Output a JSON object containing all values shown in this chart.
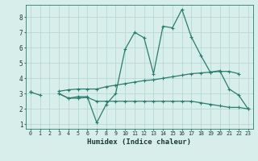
{
  "xlabel": "Humidex (Indice chaleur)",
  "x_values": [
    0,
    1,
    2,
    3,
    4,
    5,
    6,
    7,
    8,
    9,
    10,
    11,
    12,
    13,
    14,
    15,
    16,
    17,
    18,
    19,
    20,
    21,
    22,
    23
  ],
  "line1_y": [
    3.1,
    2.9,
    null,
    3.0,
    2.7,
    2.8,
    2.8,
    1.1,
    2.3,
    3.0,
    5.9,
    7.0,
    6.65,
    4.3,
    7.4,
    7.3,
    8.5,
    6.7,
    5.5,
    4.4,
    4.5,
    3.3,
    2.9,
    2.0
  ],
  "line2_y": [
    3.1,
    null,
    null,
    3.15,
    3.25,
    3.3,
    3.3,
    3.3,
    3.45,
    3.55,
    3.65,
    3.75,
    3.85,
    3.9,
    4.0,
    4.1,
    4.2,
    4.3,
    4.35,
    4.4,
    4.45,
    4.45,
    4.3,
    null
  ],
  "line3_y": [
    3.1,
    null,
    null,
    3.0,
    2.7,
    2.7,
    2.75,
    2.5,
    2.5,
    2.5,
    2.5,
    2.5,
    2.5,
    2.5,
    2.5,
    2.5,
    2.5,
    2.5,
    2.4,
    2.3,
    2.2,
    2.1,
    2.1,
    2.0
  ],
  "line_color": "#2a7d6e",
  "bg_color": "#d8eeeb",
  "grid_color": "#b5d8d2",
  "ylim": [
    0.7,
    8.8
  ],
  "xlim": [
    -0.5,
    23.5
  ],
  "yticks": [
    1,
    2,
    3,
    4,
    5,
    6,
    7,
    8
  ],
  "xticks": [
    0,
    1,
    2,
    3,
    4,
    5,
    6,
    7,
    8,
    9,
    10,
    11,
    12,
    13,
    14,
    15,
    16,
    17,
    18,
    19,
    20,
    21,
    22,
    23
  ]
}
